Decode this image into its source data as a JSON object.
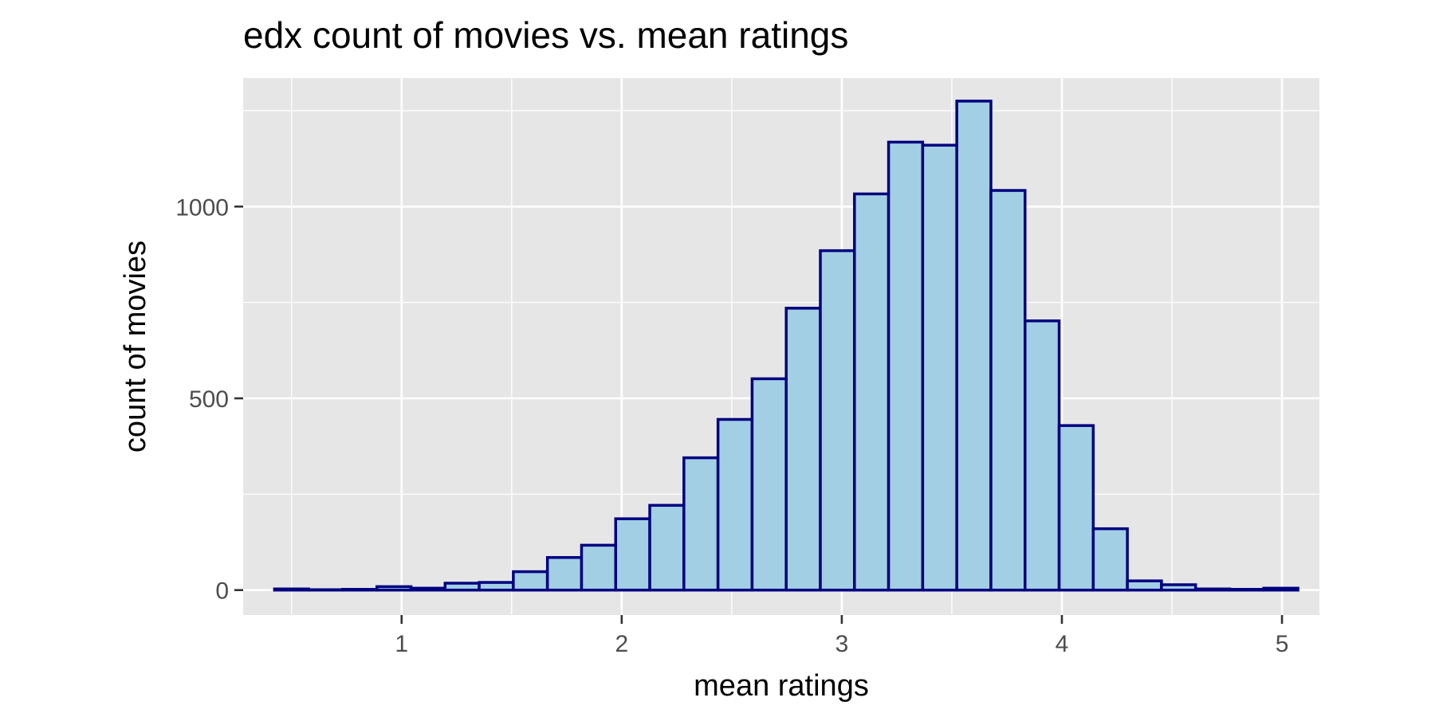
{
  "chart_data": {
    "type": "bar",
    "title": "edx count of movies vs. mean ratings",
    "xlabel": "mean ratings",
    "ylabel": "count of movies",
    "xlim": [
      0.28,
      5.17
    ],
    "ylim": [
      -65,
      1335
    ],
    "xticks": [
      1,
      2,
      3,
      4,
      5
    ],
    "yticks": [
      0,
      500,
      1000
    ],
    "grid": true,
    "colors": {
      "fill": "#a2cfe3",
      "outline": "#000080",
      "panel": "#e6e6e6"
    },
    "bin_width": 0.155,
    "bins": [
      {
        "x": 0.5,
        "count": 3
      },
      {
        "x": 0.655,
        "count": 1
      },
      {
        "x": 0.81,
        "count": 2
      },
      {
        "x": 0.965,
        "count": 9
      },
      {
        "x": 1.12,
        "count": 5
      },
      {
        "x": 1.275,
        "count": 18
      },
      {
        "x": 1.43,
        "count": 20
      },
      {
        "x": 1.585,
        "count": 48
      },
      {
        "x": 1.74,
        "count": 85
      },
      {
        "x": 1.895,
        "count": 117
      },
      {
        "x": 2.05,
        "count": 186
      },
      {
        "x": 2.205,
        "count": 221
      },
      {
        "x": 2.36,
        "count": 345
      },
      {
        "x": 2.515,
        "count": 445
      },
      {
        "x": 2.67,
        "count": 551
      },
      {
        "x": 2.825,
        "count": 735
      },
      {
        "x": 2.98,
        "count": 885
      },
      {
        "x": 3.135,
        "count": 1033
      },
      {
        "x": 3.29,
        "count": 1168
      },
      {
        "x": 3.445,
        "count": 1160
      },
      {
        "x": 3.6,
        "count": 1275
      },
      {
        "x": 3.755,
        "count": 1042
      },
      {
        "x": 3.91,
        "count": 702
      },
      {
        "x": 4.065,
        "count": 429
      },
      {
        "x": 4.22,
        "count": 160
      },
      {
        "x": 4.375,
        "count": 24
      },
      {
        "x": 4.53,
        "count": 14
      },
      {
        "x": 4.685,
        "count": 3
      },
      {
        "x": 4.84,
        "count": 2
      },
      {
        "x": 4.995,
        "count": 5
      }
    ]
  }
}
